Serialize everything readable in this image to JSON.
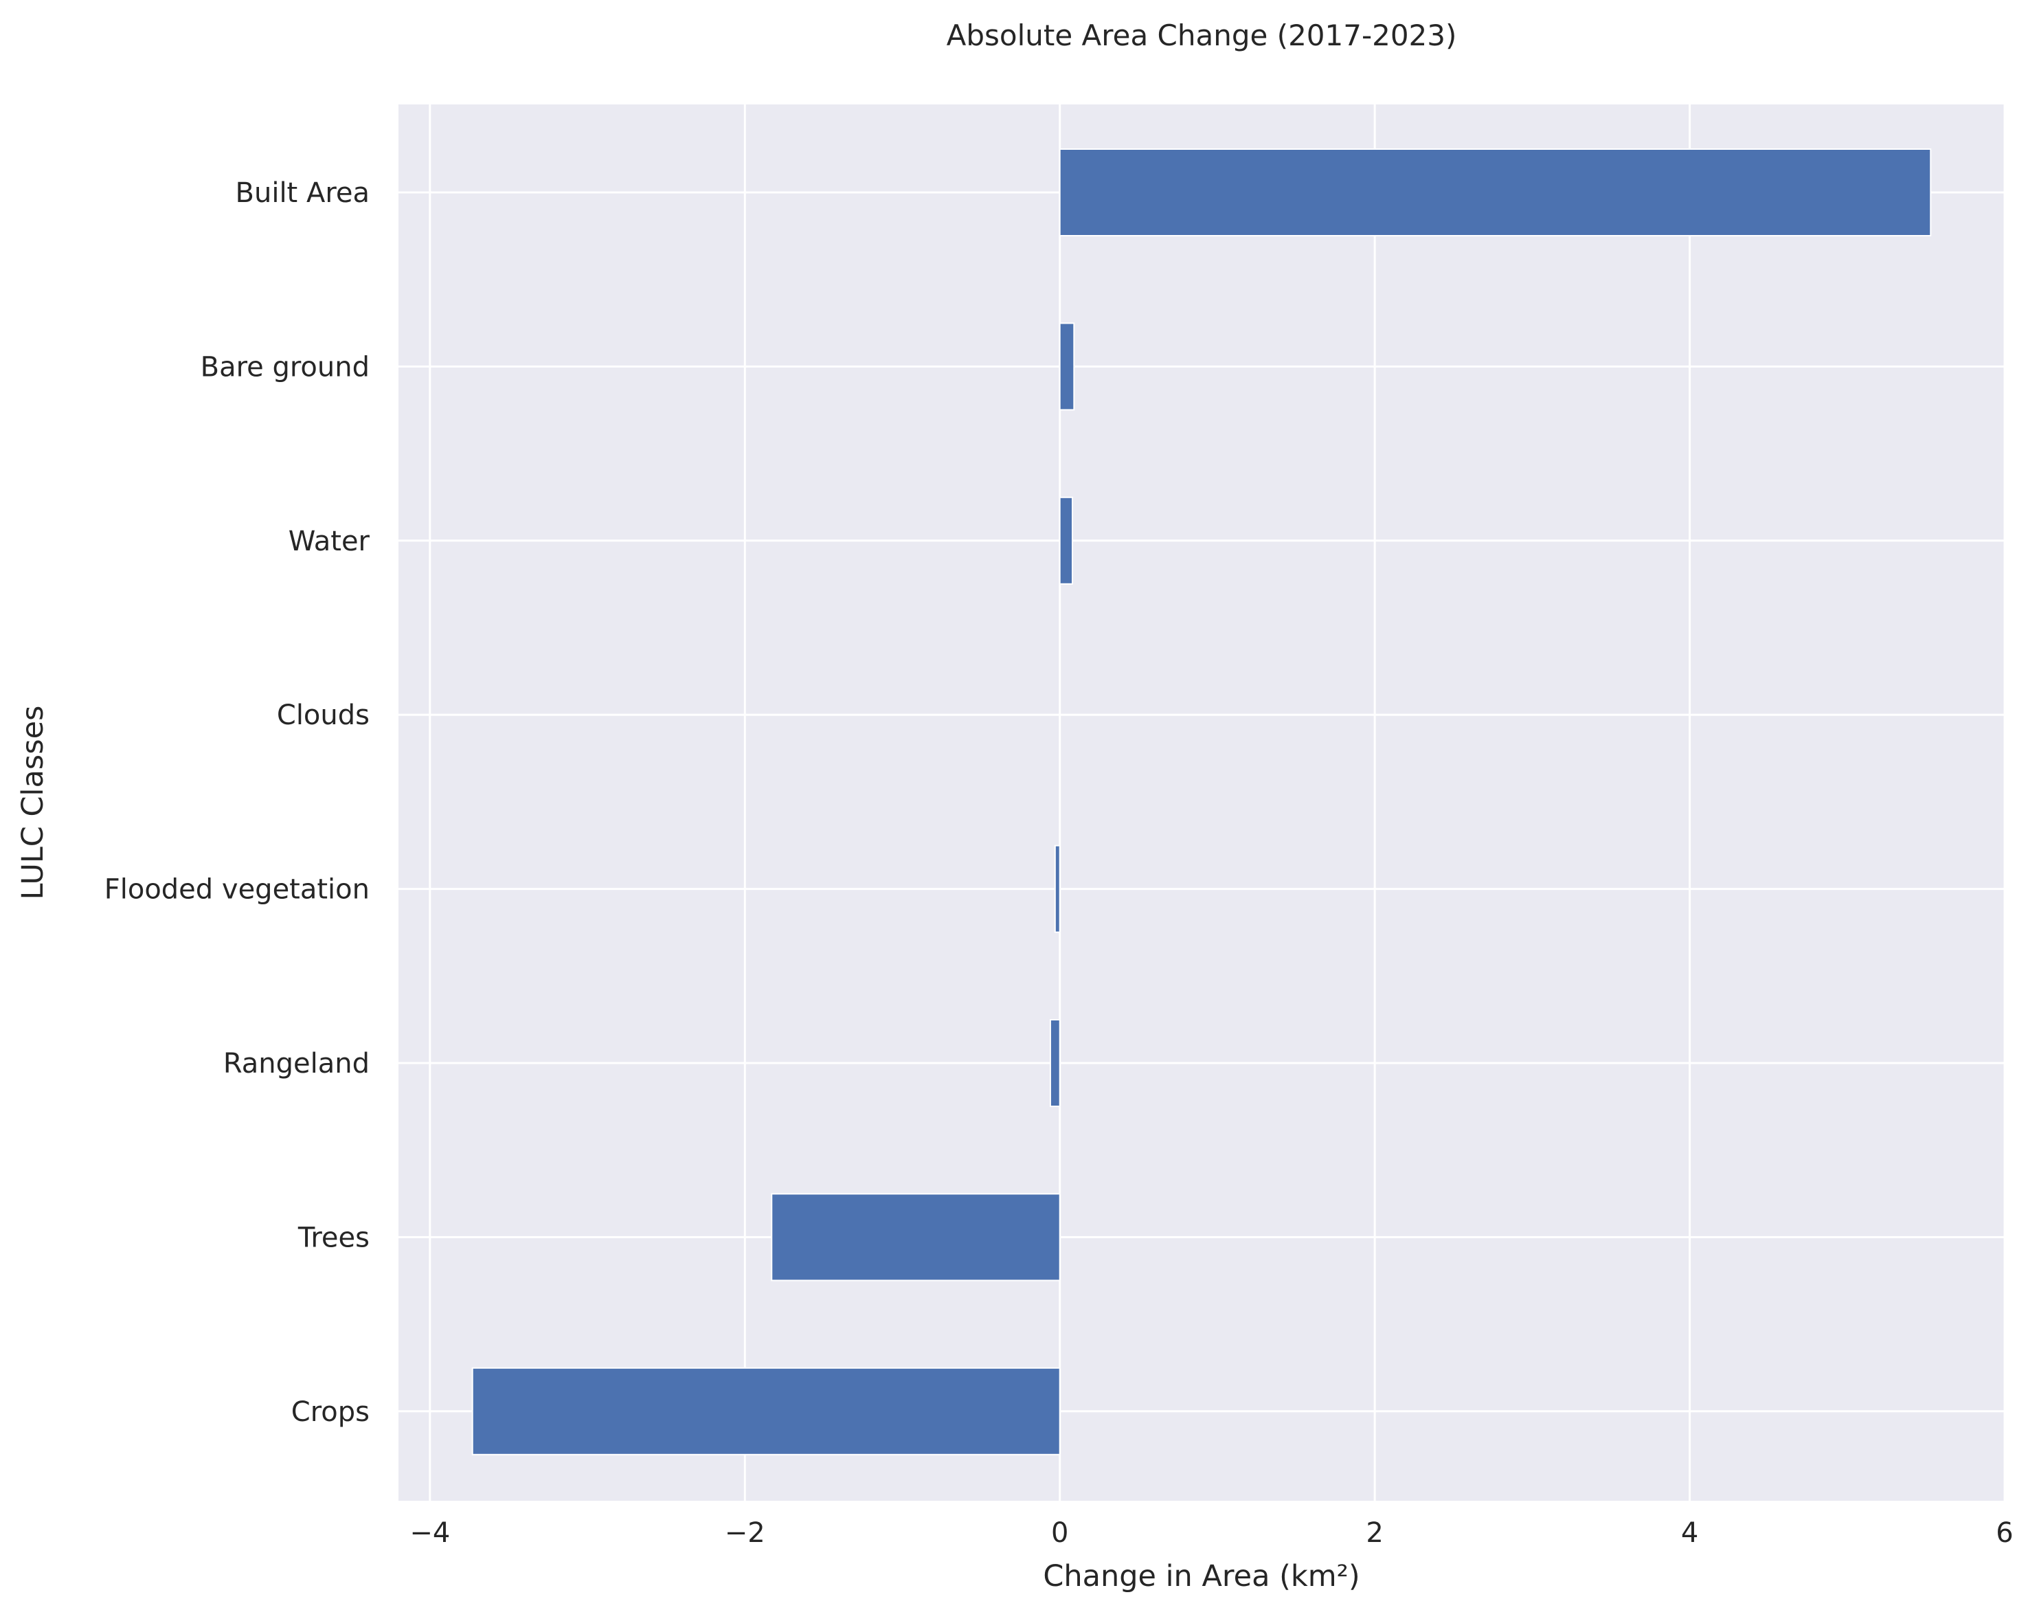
{
  "chart_data": {
    "type": "bar",
    "orientation": "horizontal",
    "title": "Absolute Area Change (2017-2023)",
    "xlabel": "Change in Area (km²)",
    "ylabel": "LULC Classes",
    "categories": [
      "Built Area",
      "Bare ground",
      "Water",
      "Clouds",
      "Flooded vegetation",
      "Rangeland",
      "Trees",
      "Crops"
    ],
    "values": [
      5.53,
      0.09,
      0.08,
      0.0,
      -0.03,
      -0.06,
      -1.83,
      -3.73
    ],
    "xlim": [
      -4.2,
      6.0
    ],
    "xticks": [
      -4,
      -2,
      0,
      2,
      4,
      6
    ],
    "xtick_labels": [
      "−4",
      "−2",
      "0",
      "2",
      "4",
      "6"
    ],
    "grid": true,
    "colors": {
      "bar": "#4c72b0",
      "plot_background": "#eaeaf2",
      "grid": "#ffffff",
      "text": "#262626"
    }
  }
}
